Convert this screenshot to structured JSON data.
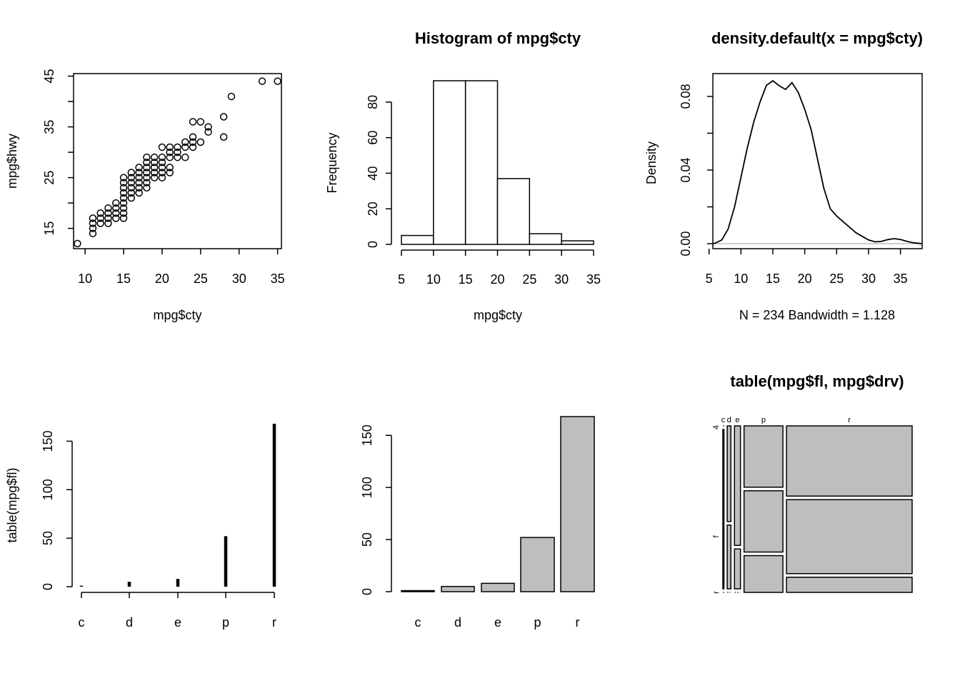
{
  "chart_data": [
    {
      "type": "scatter",
      "title": "",
      "xlabel": "mpg$cty",
      "ylabel": "mpg$hwy",
      "xlim": [
        8.5,
        35.5
      ],
      "ylim": [
        11,
        45.5
      ],
      "xticks": [
        10,
        15,
        20,
        25,
        30,
        35
      ],
      "yticks": [
        15,
        25,
        35,
        45
      ],
      "yticks_minor": [
        20,
        30,
        40
      ],
      "points": [
        [
          9,
          12
        ],
        [
          11,
          14
        ],
        [
          11,
          15
        ],
        [
          11,
          16
        ],
        [
          11,
          17
        ],
        [
          12,
          16
        ],
        [
          12,
          17
        ],
        [
          12,
          18
        ],
        [
          13,
          16
        ],
        [
          13,
          17
        ],
        [
          13,
          18
        ],
        [
          13,
          19
        ],
        [
          14,
          17
        ],
        [
          14,
          18
        ],
        [
          14,
          19
        ],
        [
          14,
          20
        ],
        [
          15,
          17
        ],
        [
          15,
          18
        ],
        [
          15,
          19
        ],
        [
          15,
          20
        ],
        [
          15,
          21
        ],
        [
          15,
          22
        ],
        [
          15,
          23
        ],
        [
          15,
          24
        ],
        [
          15,
          25
        ],
        [
          16,
          21
        ],
        [
          16,
          22
        ],
        [
          16,
          23
        ],
        [
          16,
          24
        ],
        [
          16,
          25
        ],
        [
          16,
          26
        ],
        [
          17,
          22
        ],
        [
          17,
          23
        ],
        [
          17,
          24
        ],
        [
          17,
          25
        ],
        [
          17,
          26
        ],
        [
          17,
          27
        ],
        [
          18,
          23
        ],
        [
          18,
          24
        ],
        [
          18,
          25
        ],
        [
          18,
          26
        ],
        [
          18,
          27
        ],
        [
          18,
          28
        ],
        [
          18,
          29
        ],
        [
          19,
          25
        ],
        [
          19,
          26
        ],
        [
          19,
          27
        ],
        [
          19,
          28
        ],
        [
          19,
          29
        ],
        [
          20,
          25
        ],
        [
          20,
          26
        ],
        [
          20,
          27
        ],
        [
          20,
          28
        ],
        [
          20,
          29
        ],
        [
          20,
          31
        ],
        [
          21,
          26
        ],
        [
          21,
          27
        ],
        [
          21,
          29
        ],
        [
          21,
          30
        ],
        [
          21,
          31
        ],
        [
          22,
          29
        ],
        [
          22,
          30
        ],
        [
          22,
          31
        ],
        [
          23,
          29
        ],
        [
          23,
          31
        ],
        [
          23,
          32
        ],
        [
          24,
          31
        ],
        [
          24,
          32
        ],
        [
          24,
          33
        ],
        [
          24,
          36
        ],
        [
          25,
          32
        ],
        [
          25,
          36
        ],
        [
          26,
          34
        ],
        [
          26,
          35
        ],
        [
          28,
          33
        ],
        [
          28,
          37
        ],
        [
          29,
          41
        ],
        [
          33,
          44
        ],
        [
          35,
          44
        ]
      ]
    },
    {
      "type": "bar",
      "title": "Histogram of mpg$cty",
      "xlabel": "mpg$cty",
      "ylabel": "Frequency",
      "bins": [
        [
          5,
          10
        ],
        [
          10,
          15
        ],
        [
          15,
          20
        ],
        [
          20,
          25
        ],
        [
          25,
          30
        ],
        [
          30,
          35
        ]
      ],
      "values": [
        5,
        92,
        92,
        37,
        6,
        2
      ],
      "xticks": [
        5,
        10,
        15,
        20,
        25,
        30,
        35
      ],
      "yticks": [
        0,
        20,
        40,
        60,
        80
      ],
      "ylim": [
        0,
        92
      ]
    },
    {
      "type": "line",
      "title": "density.default(x = mpg$cty)",
      "xlabel": "N = 234   Bandwidth = 1.128",
      "ylabel": "Density",
      "xlim": [
        5.6,
        38.4
      ],
      "ylim": [
        0,
        0.0885
      ],
      "xticks": [
        5,
        10,
        15,
        20,
        25,
        30,
        35
      ],
      "yticks": [
        "0.00",
        "0.04",
        "0.08"
      ],
      "yticks_minor": [
        0.02,
        0.06
      ],
      "x": [
        5.6,
        6,
        7,
        8,
        9,
        10,
        11,
        12,
        13,
        14,
        15,
        16,
        17,
        18,
        19,
        20,
        21,
        22,
        23,
        24,
        25,
        26,
        27,
        28,
        29,
        30,
        31,
        32,
        33,
        34,
        35,
        36,
        37,
        38,
        38.4
      ],
      "y": [
        0,
        0.0003,
        0.002,
        0.008,
        0.02,
        0.036,
        0.052,
        0.066,
        0.077,
        0.086,
        0.0885,
        0.0858,
        0.0838,
        0.0875,
        0.082,
        0.073,
        0.062,
        0.046,
        0.03,
        0.019,
        0.015,
        0.012,
        0.009,
        0.006,
        0.004,
        0.002,
        0.001,
        0.0012,
        0.0022,
        0.0027,
        0.0023,
        0.0013,
        0.0005,
        0.0001,
        0
      ]
    },
    {
      "type": "bar",
      "title": "",
      "xlabel": "",
      "ylabel": "table(mpg$fl)",
      "categories": [
        "c",
        "d",
        "e",
        "p",
        "r"
      ],
      "values": [
        1,
        5,
        8,
        52,
        168
      ],
      "yticks": [
        0,
        50,
        100,
        150
      ],
      "ylim": [
        0,
        168
      ]
    },
    {
      "type": "bar",
      "title": "",
      "xlabel": "",
      "ylabel": "",
      "categories": [
        "c",
        "d",
        "e",
        "p",
        "r"
      ],
      "values": [
        1,
        5,
        8,
        52,
        168
      ],
      "yticks": [
        0,
        50,
        100,
        150
      ],
      "ylim": [
        0,
        168
      ],
      "bar_color": "#bebebe"
    },
    {
      "type": "mosaic",
      "title": "table(mpg$fl, mpg$drv)",
      "row_labels": [
        "c",
        "d",
        "e",
        "p",
        "r"
      ],
      "col_labels": [
        "4",
        "f",
        "r"
      ],
      "counts": [
        [
          0,
          1,
          0
        ],
        [
          3,
          2,
          0
        ],
        [
          6,
          2,
          0
        ],
        [
          20,
          20,
          12
        ],
        [
          74,
          78,
          16
        ]
      ],
      "fill_color": "#bebebe"
    }
  ]
}
